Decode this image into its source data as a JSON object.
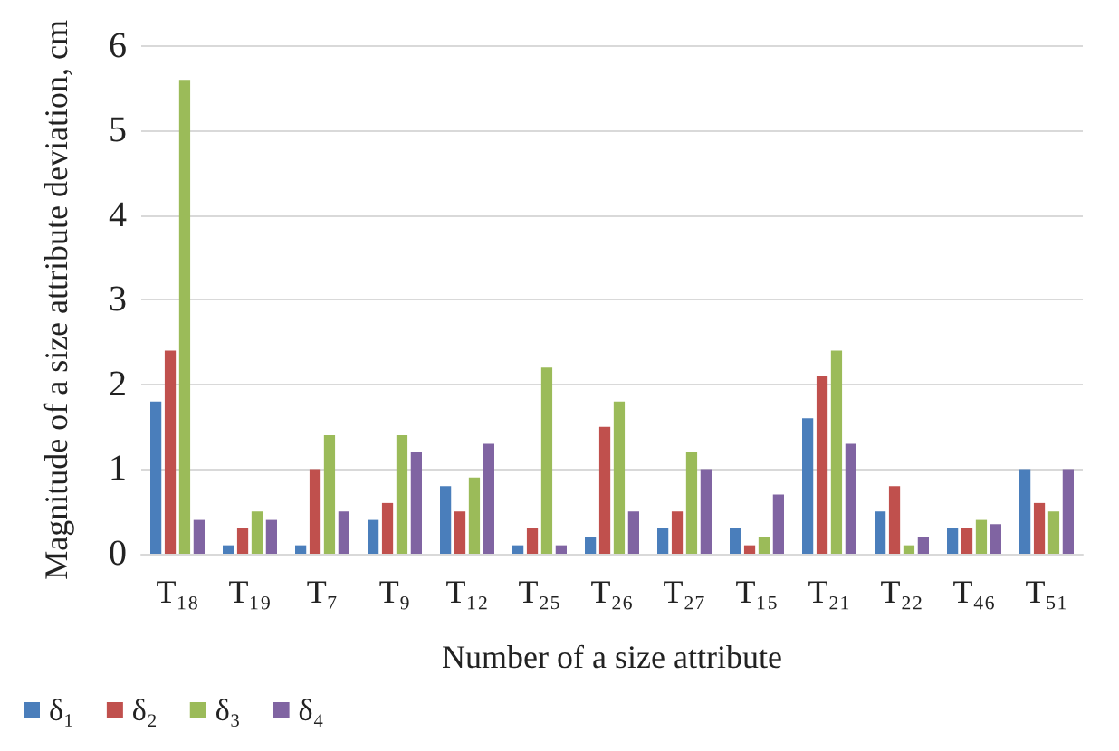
{
  "chart_data": {
    "type": "bar",
    "xlabel": "Number of a size attribute",
    "ylabel": "Magnitude of a size attribute deviation, cm",
    "categories": [
      "T₁₈",
      "T₁₉",
      "T₇",
      "T₉",
      "T₁₂",
      "T₂₅",
      "T₂₆",
      "T₂₇",
      "T₁₅",
      "T₂₁",
      "T₂₂",
      "T₄₆",
      "T₅₁"
    ],
    "series": [
      {
        "name": "δ₁",
        "color": "#4a7ebb",
        "values": [
          1.8,
          0.1,
          0.1,
          0.4,
          0.8,
          0.1,
          0.2,
          0.3,
          0.3,
          1.6,
          0.5,
          0.3,
          1.0
        ]
      },
      {
        "name": "δ₂",
        "color": "#c0504d",
        "values": [
          2.4,
          0.3,
          1.0,
          0.6,
          0.5,
          0.3,
          1.5,
          0.5,
          0.1,
          2.1,
          0.8,
          0.3,
          0.6
        ]
      },
      {
        "name": "δ₃",
        "color": "#9bbb59",
        "values": [
          5.6,
          0.5,
          1.4,
          1.4,
          0.9,
          2.2,
          1.8,
          1.2,
          0.2,
          2.4,
          0.1,
          0.4,
          0.5
        ]
      },
      {
        "name": "δ₄",
        "color": "#8064a2",
        "values": [
          0.4,
          0.4,
          0.5,
          1.2,
          1.3,
          0.1,
          0.5,
          1.0,
          0.7,
          1.3,
          0.2,
          0.35,
          1.0
        ]
      }
    ],
    "ylim": [
      0,
      6
    ],
    "yticks": [
      0,
      1,
      2,
      3,
      4,
      5,
      6
    ],
    "grid": "y",
    "legend": "bottom left"
  }
}
